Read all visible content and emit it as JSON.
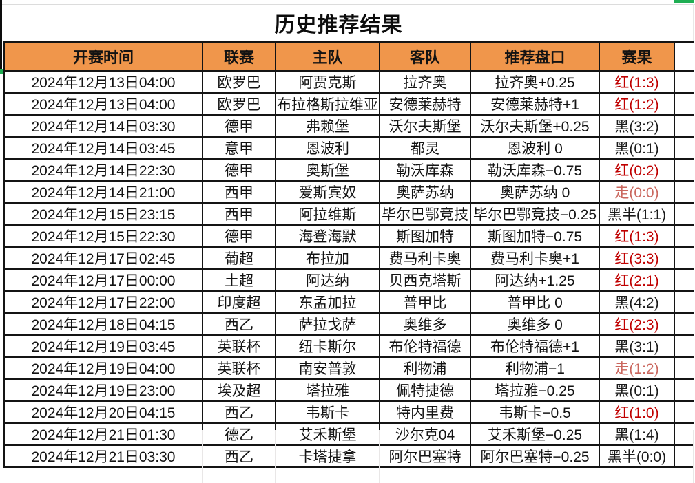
{
  "title": "历史推荐结果",
  "table": {
    "columns": [
      "开赛时间",
      "联赛",
      "主队",
      "客队",
      "推荐盘口",
      "赛果"
    ],
    "rows": [
      {
        "time": "2024年12月13日04:00",
        "league": "欧罗巴",
        "home": "阿贾克斯",
        "away": "拉齐奥",
        "handicap": "拉齐奥+0.25",
        "result": "红(1:3)",
        "result_type": "win"
      },
      {
        "time": "2024年12月13日04:00",
        "league": "欧罗巴",
        "home": "布拉格斯拉维亚",
        "away": "安德莱赫特",
        "handicap": "安德莱赫特+1",
        "result": "红(1:2)",
        "result_type": "win"
      },
      {
        "time": "2024年12月14日03:30",
        "league": "德甲",
        "home": "弗赖堡",
        "away": "沃尔夫斯堡",
        "handicap": "沃尔夫斯堡+0.25",
        "result": "黑(3:2)",
        "result_type": "loss"
      },
      {
        "time": "2024年12月14日03:45",
        "league": "意甲",
        "home": "恩波利",
        "away": "都灵",
        "handicap": "恩波利 0",
        "result": "黑(0:1)",
        "result_type": "loss"
      },
      {
        "time": "2024年12月14日22:30",
        "league": "德甲",
        "home": "奥斯堡",
        "away": "勒沃库森",
        "handicap": "勒沃库森−0.75",
        "result": "红(0:2)",
        "result_type": "win"
      },
      {
        "time": "2024年12月14日21:00",
        "league": "西甲",
        "home": "爱斯宾奴",
        "away": "奥萨苏纳",
        "handicap": "奥萨苏纳 0",
        "result": "走(0:0)",
        "result_type": "push"
      },
      {
        "time": "2024年12月15日23:15",
        "league": "西甲",
        "home": "阿拉维斯",
        "away": "毕尔巴鄂竞技",
        "handicap": "毕尔巴鄂竞技−0.25",
        "result": "黑半(1:1)",
        "result_type": "loss"
      },
      {
        "time": "2024年12月15日22:30",
        "league": "德甲",
        "home": "海登海默",
        "away": "斯图加特",
        "handicap": "斯图加特−0.75",
        "result": "红(1:3)",
        "result_type": "win"
      },
      {
        "time": "2024年12月17日02:45",
        "league": "葡超",
        "home": "布拉加",
        "away": "费马利卡奥",
        "handicap": "费马利卡奥+1",
        "result": "红(3:3)",
        "result_type": "win"
      },
      {
        "time": "2024年12月17日00:00",
        "league": "土超",
        "home": "阿达纳",
        "away": "贝西克塔斯",
        "handicap": "阿达纳+1.25",
        "result": "红(2:1)",
        "result_type": "win"
      },
      {
        "time": "2024年12月17日22:00",
        "league": "印度超",
        "home": "东孟加拉",
        "away": "普甲比",
        "handicap": "普甲比 0",
        "result": "黑(4:2)",
        "result_type": "loss"
      },
      {
        "time": "2024年12月18日04:15",
        "league": "西乙",
        "home": "萨拉戈萨",
        "away": "奥维多",
        "handicap": "奥维多 0",
        "result": "红(2:3)",
        "result_type": "win"
      },
      {
        "time": "2024年12月19日03:45",
        "league": "英联杯",
        "home": "纽卡斯尔",
        "away": "布伦特福德",
        "handicap": "布伦特福德+1",
        "result": "黑(3:1)",
        "result_type": "loss"
      },
      {
        "time": "2024年12月19日04:00",
        "league": "英联杯",
        "home": "南安普敦",
        "away": "利物浦",
        "handicap": "利物浦−1",
        "result": "走(1:2)",
        "result_type": "push"
      },
      {
        "time": "2024年12月19日23:00",
        "league": "埃及超",
        "home": "塔拉雅",
        "away": "佩特捷德",
        "handicap": "塔拉雅−0.25",
        "result": "黑(0:1)",
        "result_type": "loss"
      },
      {
        "time": "2024年12月20日04:15",
        "league": "西乙",
        "home": "韦斯卡",
        "away": "特内里费",
        "handicap": "韦斯卡−0.5",
        "result": "红(1:0)",
        "result_type": "win"
      },
      {
        "time": "2024年12月21日01:30",
        "league": "德乙",
        "home": "艾禾斯堡",
        "away": "沙尔克04",
        "handicap": "艾禾斯堡−0.25",
        "result": "黑(1:4)",
        "result_type": "loss"
      },
      {
        "time": "2024年12月21日03:30",
        "league": "西乙",
        "home": "卡塔捷拿",
        "away": "阿尔巴塞特",
        "handicap": "阿尔巴塞特−0.25",
        "result": "黑半(0:0)",
        "result_type": "loss"
      }
    ]
  },
  "result_colors": {
    "win": "#c00000",
    "loss": "#1a1a1a",
    "push": "#ca675e"
  },
  "theme": {
    "header_bg": "#f0964b",
    "border": "#141414",
    "selection_green": "#1fae53"
  }
}
